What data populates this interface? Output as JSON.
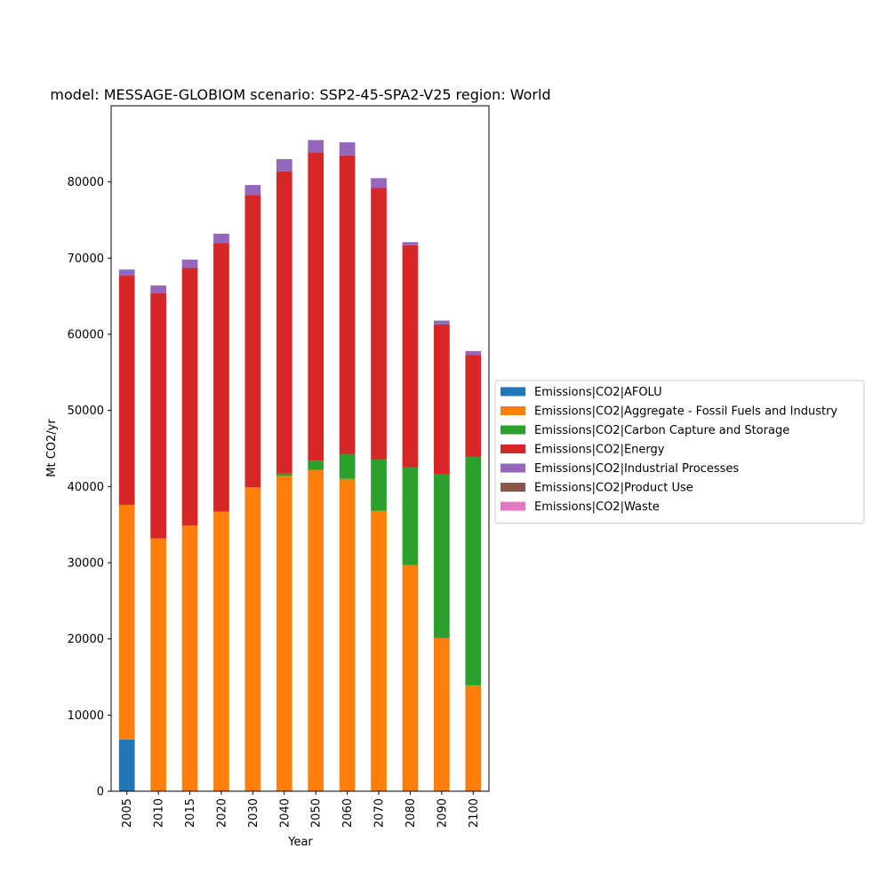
{
  "chart_data": {
    "type": "bar",
    "stacked": true,
    "title": "model: MESSAGE-GLOBIOM scenario: SSP2-45-SPA2-V25 region: World",
    "xlabel": "Year",
    "ylabel": "Mt CO2/yr",
    "ylim": [
      0,
      90000
    ],
    "yticks": [
      0,
      10000,
      20000,
      30000,
      40000,
      50000,
      60000,
      70000,
      80000
    ],
    "grid": false,
    "legend_position": "right",
    "categories": [
      "2005",
      "2010",
      "2015",
      "2020",
      "2030",
      "2040",
      "2050",
      "2060",
      "2070",
      "2080",
      "2090",
      "2100"
    ],
    "series": [
      {
        "name": "Emissions|CO2|AFOLU",
        "color": "#1f77b4",
        "values": [
          6800,
          0,
          0,
          0,
          0,
          0,
          0,
          0,
          0,
          0,
          0,
          0
        ]
      },
      {
        "name": "Emissions|CO2|Aggregate - Fossil Fuels and Industry",
        "color": "#ff7f0e",
        "values": [
          30800,
          33200,
          34900,
          36700,
          39900,
          41400,
          42200,
          41000,
          36800,
          29700,
          20100,
          13900
        ]
      },
      {
        "name": "Emissions|CO2|Carbon Capture and Storage",
        "color": "#2ca02c",
        "values": [
          0,
          0,
          0,
          0,
          0,
          300,
          1200,
          3300,
          6800,
          12800,
          21500,
          30000
        ]
      },
      {
        "name": "Emissions|CO2|Energy",
        "color": "#d62728",
        "values": [
          30100,
          32200,
          33800,
          35300,
          38400,
          39700,
          40500,
          39200,
          35600,
          29200,
          19700,
          13400
        ]
      },
      {
        "name": "Emissions|CO2|Industrial Processes",
        "color": "#9467bd",
        "values": [
          800,
          1000,
          1100,
          1200,
          1300,
          1600,
          1600,
          1700,
          1300,
          400,
          500,
          500
        ]
      },
      {
        "name": "Emissions|CO2|Product Use",
        "color": "#8c564b",
        "values": [
          0,
          0,
          0,
          0,
          0,
          0,
          0,
          0,
          0,
          0,
          0,
          0
        ]
      },
      {
        "name": "Emissions|CO2|Waste",
        "color": "#e377c2",
        "values": [
          0,
          0,
          0,
          0,
          0,
          0,
          0,
          0,
          0,
          0,
          0,
          0
        ]
      }
    ]
  }
}
